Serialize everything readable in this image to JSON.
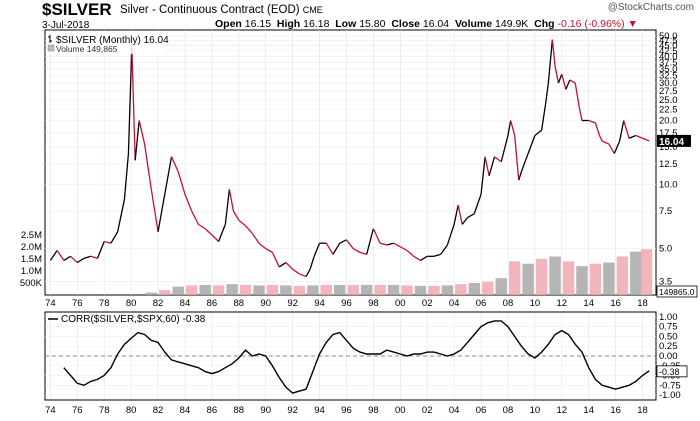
{
  "header": {
    "symbol": "$SILVER",
    "name": "Silver - Continuous Contract (EOD)",
    "exchange": "CME",
    "date": "3-Jul-2018",
    "open_label": "Open",
    "open": "16.15",
    "high_label": "High",
    "high": "16.18",
    "low_label": "Low",
    "low": "15.80",
    "close_label": "Close",
    "close": "16.04",
    "volume_label": "Volume",
    "volume": "149.9K",
    "chg_label": "Chg",
    "chg": "-0.16 (-0.96%)",
    "credit": "@StockCharts.com"
  },
  "colors": {
    "up": "#000000",
    "down": "#c8102e",
    "volume_up": "#a8a8a8",
    "volume_down": "#f0a8b0",
    "corr_line": "#000000"
  },
  "chart_data": [
    {
      "type": "line",
      "title": "$SILVER (Monthly) 16.04",
      "legend": [
        "$SILVER (Monthly) 16.04",
        "Volume 149,865"
      ],
      "y_scale": "log",
      "ylim": [
        3.3,
        51
      ],
      "y_ticks": [
        "3.5",
        "5.0",
        "7.5",
        "10.0",
        "12.5",
        "15.0",
        "17.5",
        "20.0",
        "22.5",
        "25.0",
        "27.5",
        "30.0",
        "32.5",
        "35.0",
        "37.5",
        "40.0",
        "42.5",
        "45.0",
        "47.5",
        "50.0"
      ],
      "last_value_label": "16.04",
      "x_ticks": [
        "74",
        "76",
        "78",
        "80",
        "82",
        "84",
        "86",
        "88",
        "90",
        "92",
        "94",
        "96",
        "98",
        "00",
        "02",
        "04",
        "06",
        "08",
        "10",
        "12",
        "14",
        "16",
        "18"
      ],
      "x": [
        1974.0,
        1974.5,
        1975.0,
        1975.5,
        1976.0,
        1976.5,
        1977.0,
        1977.5,
        1978.0,
        1978.5,
        1979.0,
        1979.5,
        1979.8,
        1980.05,
        1980.3,
        1980.6,
        1981.0,
        1981.5,
        1982.0,
        1982.5,
        1983.0,
        1983.5,
        1984.0,
        1984.5,
        1985.0,
        1985.5,
        1986.0,
        1986.5,
        1987.0,
        1987.3,
        1987.6,
        1988.0,
        1988.5,
        1989.0,
        1989.5,
        1990.0,
        1990.5,
        1991.0,
        1991.5,
        1992.0,
        1992.5,
        1993.0,
        1993.3,
        1993.6,
        1994.0,
        1994.5,
        1995.0,
        1995.5,
        1996.0,
        1996.5,
        1997.0,
        1997.5,
        1998.0,
        1998.5,
        1999.0,
        1999.5,
        2000.0,
        2000.5,
        2001.0,
        2001.5,
        2002.0,
        2002.5,
        2003.0,
        2003.5,
        2004.0,
        2004.3,
        2004.6,
        2005.0,
        2005.5,
        2006.0,
        2006.3,
        2006.6,
        2007.0,
        2007.5,
        2008.0,
        2008.2,
        2008.5,
        2008.8,
        2009.0,
        2009.5,
        2010.0,
        2010.5,
        2010.8,
        2011.0,
        2011.3,
        2011.5,
        2011.75,
        2012.0,
        2012.3,
        2012.6,
        2013.0,
        2013.3,
        2013.5,
        2014.0,
        2014.5,
        2014.8,
        2015.0,
        2015.5,
        2015.9,
        2016.3,
        2016.6,
        2017.0,
        2017.5,
        2018.0,
        2018.5
      ],
      "series": [
        {
          "name": "$SILVER (Monthly)",
          "values": [
            4.4,
            4.9,
            4.4,
            4.6,
            4.3,
            4.5,
            4.6,
            4.5,
            5.4,
            5.3,
            6.0,
            8.5,
            14.0,
            45.0,
            13.0,
            20.0,
            15.5,
            9.5,
            6.0,
            9.0,
            13.5,
            11.5,
            9.0,
            7.5,
            6.5,
            6.2,
            5.8,
            5.4,
            6.5,
            9.5,
            7.5,
            6.8,
            6.4,
            5.9,
            5.3,
            5.0,
            4.8,
            4.1,
            4.3,
            4.0,
            3.8,
            3.7,
            4.0,
            4.6,
            5.3,
            5.3,
            4.7,
            5.3,
            5.5,
            5.0,
            4.8,
            4.7,
            6.2,
            5.3,
            5.2,
            5.3,
            5.1,
            4.9,
            4.6,
            4.4,
            4.6,
            4.6,
            4.7,
            5.2,
            6.5,
            8.0,
            6.5,
            7.0,
            7.3,
            9.0,
            13.5,
            11.0,
            13.5,
            12.8,
            17.0,
            20.0,
            17.0,
            10.5,
            11.5,
            14.0,
            17.0,
            18.0,
            24.0,
            30.0,
            48.0,
            36.0,
            30.0,
            33.0,
            28.0,
            31.0,
            30.0,
            23.0,
            20.0,
            20.0,
            19.5,
            17.0,
            16.0,
            15.5,
            14.0,
            16.0,
            20.0,
            16.5,
            17.0,
            16.5,
            16.04
          ]
        }
      ],
      "volume": {
        "label": "Volume 149,865",
        "y_ticks": [
          "500K",
          "1.0M",
          "1.5M",
          "2.0M",
          "2.5M"
        ],
        "ylim": [
          0,
          2.7
        ],
        "last_value_label": "149865.0",
        "x": [
          1981.5,
          1982.5,
          1983.5,
          1984.5,
          1985.5,
          1986.5,
          1987.5,
          1988.5,
          1989.5,
          1990.5,
          1991.5,
          1992.5,
          1993.5,
          1994.5,
          1995.5,
          1996.5,
          1997.5,
          1998.5,
          1999.5,
          2000.5,
          2001.5,
          2002.5,
          2003.5,
          2004.5,
          2005.5,
          2006.5,
          2007.5,
          2008.5,
          2009.5,
          2010.5,
          2011.5,
          2012.5,
          2013.5,
          2014.5,
          2015.5,
          2016.5,
          2017.5,
          2018.3
        ],
        "values_millions": [
          0.1,
          0.2,
          0.35,
          0.4,
          0.42,
          0.4,
          0.45,
          0.42,
          0.4,
          0.42,
          0.4,
          0.38,
          0.4,
          0.42,
          0.42,
          0.42,
          0.42,
          0.42,
          0.42,
          0.4,
          0.38,
          0.38,
          0.4,
          0.45,
          0.5,
          0.55,
          0.7,
          1.4,
          1.3,
          1.5,
          1.6,
          1.4,
          1.2,
          1.3,
          1.35,
          1.6,
          1.8,
          1.9
        ]
      }
    },
    {
      "type": "line",
      "title": "CORR($SILVER,$SPX,60) -0.38",
      "legend": [
        "CORR($SILVER,$SPX,60) -0.38"
      ],
      "ylim": [
        -1.05,
        1.05
      ],
      "y_ticks": [
        "1.00",
        "0.75",
        "0.50",
        "0.25",
        "0.00",
        "-0.25",
        "-0.50",
        "-0.75",
        "-1.00"
      ],
      "last_value_label": "-0.38",
      "reference_line": 0.0,
      "x_ticks": [
        "74",
        "76",
        "78",
        "80",
        "82",
        "84",
        "86",
        "88",
        "90",
        "92",
        "94",
        "96",
        "98",
        "00",
        "02",
        "04",
        "06",
        "08",
        "10",
        "12",
        "14",
        "16",
        "18"
      ],
      "x": [
        1975.0,
        1975.5,
        1976.0,
        1976.5,
        1977.0,
        1977.5,
        1978.0,
        1978.5,
        1979.0,
        1979.5,
        1980.0,
        1980.5,
        1981.0,
        1981.5,
        1982.0,
        1982.5,
        1983.0,
        1983.5,
        1984.0,
        1984.5,
        1985.0,
        1985.5,
        1986.0,
        1986.5,
        1987.0,
        1987.5,
        1988.0,
        1988.5,
        1989.0,
        1989.5,
        1990.0,
        1990.5,
        1991.0,
        1991.5,
        1992.0,
        1992.5,
        1993.0,
        1993.5,
        1994.0,
        1994.5,
        1995.0,
        1995.5,
        1996.0,
        1996.5,
        1997.0,
        1997.5,
        1998.0,
        1998.5,
        1999.0,
        1999.5,
        2000.0,
        2000.5,
        2001.0,
        2001.5,
        2002.0,
        2002.5,
        2003.0,
        2003.5,
        2004.0,
        2004.5,
        2005.0,
        2005.5,
        2006.0,
        2006.5,
        2007.0,
        2007.5,
        2008.0,
        2008.5,
        2009.0,
        2009.5,
        2010.0,
        2010.5,
        2011.0,
        2011.5,
        2012.0,
        2012.5,
        2013.0,
        2013.5,
        2014.0,
        2014.5,
        2015.0,
        2015.5,
        2016.0,
        2016.5,
        2017.0,
        2017.5,
        2018.0,
        2018.5
      ],
      "series": [
        {
          "name": "CORR($SILVER,$SPX,60)",
          "values": [
            -0.3,
            -0.5,
            -0.7,
            -0.75,
            -0.65,
            -0.6,
            -0.5,
            -0.3,
            0.05,
            0.3,
            0.45,
            0.6,
            0.55,
            0.4,
            0.35,
            0.1,
            -0.1,
            -0.15,
            -0.2,
            -0.25,
            -0.3,
            -0.4,
            -0.45,
            -0.4,
            -0.3,
            -0.2,
            -0.05,
            0.15,
            0.0,
            0.05,
            0.0,
            -0.25,
            -0.55,
            -0.8,
            -0.95,
            -0.9,
            -0.85,
            -0.4,
            0.05,
            0.35,
            0.55,
            0.6,
            0.4,
            0.2,
            0.1,
            0.05,
            0.05,
            0.05,
            0.15,
            0.1,
            0.05,
            0.0,
            0.05,
            0.05,
            0.1,
            0.1,
            0.05,
            0.0,
            0.05,
            0.15,
            0.35,
            0.55,
            0.75,
            0.85,
            0.9,
            0.9,
            0.75,
            0.5,
            0.25,
            0.05,
            -0.05,
            0.1,
            0.3,
            0.55,
            0.65,
            0.55,
            0.3,
            0.1,
            -0.3,
            -0.6,
            -0.75,
            -0.8,
            -0.85,
            -0.8,
            -0.75,
            -0.65,
            -0.5,
            -0.38
          ]
        }
      ]
    }
  ]
}
